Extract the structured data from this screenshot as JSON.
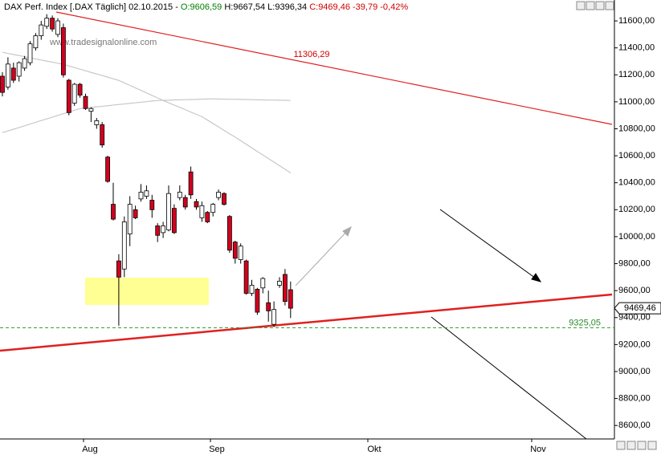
{
  "chart_data": {
    "type": "candlestick",
    "title": "DAX Perf. Index [.DAX  Täglich] 02.10.2015 -",
    "header_open": "O:9606,59",
    "header_hl": "H:9667,54 L:9396,34",
    "header_close": "C:9469,46 -39,79 -0,42%",
    "watermark": "www.tradesignalonline.com",
    "months": [
      "Aug",
      "Sep",
      "Okt",
      "Nov"
    ],
    "ylim": [
      8500,
      11755
    ],
    "yticks": [
      {
        "value": 8600,
        "label": "8600,00"
      },
      {
        "value": 8800,
        "label": "8800,00"
      },
      {
        "value": 9000,
        "label": "9000,00"
      },
      {
        "value": 9200,
        "label": "9200,00"
      },
      {
        "value": 9400,
        "label": "9400,00"
      },
      {
        "value": 9600,
        "label": "9600,00"
      },
      {
        "value": 9800,
        "label": "9800,00"
      },
      {
        "value": 10000,
        "label": "10000,00"
      },
      {
        "value": 10200,
        "label": "10200,00"
      },
      {
        "value": 10400,
        "label": "10400,00"
      },
      {
        "value": 10600,
        "label": "10600,00"
      },
      {
        "value": 10800,
        "label": "10800,00"
      },
      {
        "value": 11000,
        "label": "11000,00"
      },
      {
        "value": 11200,
        "label": "11200,00"
      },
      {
        "value": 11400,
        "label": "11400,00"
      },
      {
        "value": 11600,
        "label": "11600,00"
      }
    ],
    "open": [
      11190,
      11110,
      11250,
      11190,
      11250,
      11290,
      11400,
      11490,
      11560,
      11620,
      11500,
      11550,
      11160,
      10990,
      11130,
      11040,
      10930,
      10830,
      10830,
      10590,
      10240,
      9820,
      9760,
      10020,
      10200,
      10280,
      10300,
      10270,
      10080,
      10030,
      10050,
      10210,
      10290,
      10290,
      10480,
      10260,
      10140,
      10180,
      10180,
      10290,
      10320,
      10150,
      9960,
      9830,
      9820,
      9580,
      9610,
      9620,
      9510,
      9350,
      9640,
      9720,
      9606.59
    ],
    "high": [
      11220,
      11330,
      11290,
      11300,
      11340,
      11450,
      11510,
      11600,
      11650,
      11640,
      11620,
      11580,
      11170,
      11140,
      11140,
      11060,
      10960,
      10880,
      10850,
      10600,
      10400,
      9870,
      10150,
      10300,
      10230,
      10390,
      10380,
      10310,
      10100,
      10110,
      10380,
      10240,
      10380,
      10310,
      10520,
      10280,
      10260,
      10190,
      10250,
      10350,
      10330,
      10160,
      9970,
      9950,
      9830,
      9680,
      9620,
      9700,
      9600,
      9520,
      9700,
      9760,
      9667.54
    ],
    "low": [
      11040,
      11090,
      11140,
      11150,
      11230,
      11270,
      11380,
      11460,
      11540,
      11520,
      11480,
      11180,
      10900,
      10970,
      11030,
      10940,
      10850,
      10800,
      10660,
      10400,
      10120,
      9340,
      9700,
      9930,
      10130,
      10260,
      10280,
      10140,
      9960,
      9990,
      10040,
      10020,
      10270,
      10200,
      10280,
      10200,
      10110,
      10100,
      10150,
      10270,
      10230,
      9880,
      9800,
      9800,
      9570,
      9560,
      9420,
      9580,
      9370,
      9330,
      9620,
      9490,
      9396.34
    ],
    "close": [
      11070,
      11280,
      11160,
      11290,
      11320,
      11430,
      11490,
      11570,
      11620,
      11540,
      11600,
      11200,
      10920,
      11130,
      11050,
      10950,
      10950,
      10860,
      10680,
      10410,
      10130,
      9700,
      10110,
      10240,
      10140,
      10330,
      10340,
      10200,
      10010,
      10080,
      10320,
      10030,
      10330,
      10220,
      10310,
      10220,
      10230,
      10110,
      10240,
      10330,
      10240,
      9900,
      9840,
      9930,
      9580,
      9640,
      9440,
      9690,
      9450,
      9460,
      9670,
      9520,
      9469.46
    ],
    "moving_averages": [
      {
        "color": "#c8c8c8",
        "values": [
          11367,
          11359,
          11351,
          11343,
          11335,
          11327,
          11318,
          11310,
          11302,
          11294,
          11286,
          11278,
          11266,
          11254,
          11242,
          11230,
          11218,
          11207,
          11195,
          11183,
          11171,
          11159,
          11140,
          11122,
          11103,
          11085,
          11066,
          11047,
          11029,
          11010,
          10993,
          10976,
          10959,
          10942,
          10924,
          10907,
          10890,
          10865,
          10839,
          10814,
          10788,
          10763,
          10738,
          10712,
          10685,
          10659,
          10632,
          10606,
          10579,
          10553,
          10526,
          10500,
          10473
        ]
      },
      {
        "color": "#c8c8c8",
        "values": [
          10771,
          10784,
          10797,
          10809,
          10822,
          10835,
          10848,
          10861,
          10873,
          10886,
          10899,
          10912,
          10924,
          10937,
          10950,
          10954,
          10959,
          10963,
          10967,
          10971,
          10976,
          10980,
          10984,
          10989,
          10993,
          10997,
          11001,
          11006,
          11010,
          11011,
          11012,
          11014,
          11015,
          11016,
          11017,
          11018,
          11020,
          11021,
          11022,
          11021,
          11020,
          11019,
          11019,
          11018,
          11017,
          11016,
          11015,
          11014,
          11013,
          11013,
          11012,
          11011,
          11010
        ]
      }
    ],
    "up_color": "#ffffff",
    "down_color": "#d2001e",
    "resistance_label": "11306,29",
    "support_level": {
      "value": 9325.05,
      "label": "9325,05"
    },
    "last_price": {
      "value": 9469.46,
      "label": "9469,46"
    }
  }
}
